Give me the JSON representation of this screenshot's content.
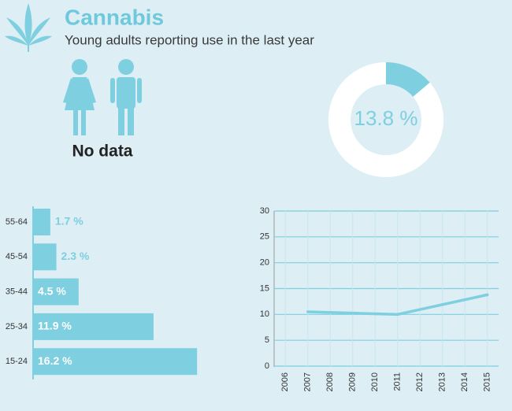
{
  "title": "Cannabis",
  "subtitle": "Young adults reporting use in the last year",
  "gender_note": "No data",
  "chart_data": [
    {
      "type": "donut",
      "values": [
        13.8
      ],
      "value_labels": [
        "13.8 %"
      ],
      "color": "#7ecfe0",
      "ylim": [
        0,
        100
      ]
    },
    {
      "type": "hbar",
      "categories": [
        "55-64",
        "45-54",
        "35-44",
        "25-34",
        "15-24"
      ],
      "values": [
        1.7,
        2.3,
        4.5,
        11.9,
        16.2
      ],
      "value_labels": [
        "1.7 %",
        "2.3 %",
        "4.5 %",
        "11.9 %",
        "16.2 %"
      ],
      "color": "#7ecfe0",
      "xlim": [
        0,
        20
      ]
    },
    {
      "type": "line",
      "x": [
        2007,
        2011,
        2015
      ],
      "values": [
        10.5,
        10,
        13.8
      ],
      "color": "#7ecfe0",
      "xlim": [
        2005.5,
        2015.5
      ],
      "xticks": [
        2006,
        2007,
        2008,
        2009,
        2010,
        2011,
        2012,
        2013,
        2014,
        2015
      ],
      "ylim": [
        0,
        30
      ],
      "yticks": [
        0,
        5,
        10,
        15,
        20,
        25,
        30
      ],
      "grid": true
    }
  ]
}
